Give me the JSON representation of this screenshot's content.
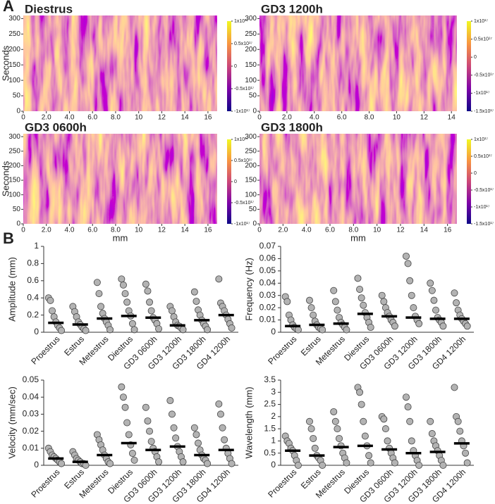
{
  "panel_labels": [
    "A",
    "B"
  ],
  "chart_data": [
    {
      "type": "heatmap",
      "title": "Diestrus",
      "ylabel": "Seconds",
      "xlim": [
        0,
        16.8
      ],
      "ylim": [
        0,
        310
      ],
      "xticks": [
        0,
        {
          "value": 2,
          "label": "2.0"
        },
        {
          "value": 4,
          "label": "4.0"
        },
        {
          "value": 6,
          "label": "6.0"
        },
        {
          "value": 8,
          "label": "8.0"
        },
        10,
        12,
        14,
        16
      ],
      "yticks": [
        0,
        50,
        100,
        150,
        200,
        250,
        300
      ],
      "clim": [
        -1e+17,
        1e+17
      ],
      "colorbar_ticks": [
        {
          "value": 1e+17,
          "label": "1x10¹⁷"
        },
        {
          "value": 5e+16,
          "label": "0.5x10¹⁷"
        },
        0,
        {
          "value": -5e+16,
          "label": "-0.5x10¹⁷"
        },
        {
          "value": -1e+17,
          "label": "-1x10¹⁷"
        }
      ]
    },
    {
      "type": "heatmap",
      "title": "GD3 1200h",
      "xlim": [
        0,
        14.4
      ],
      "ylim": [
        0,
        310
      ],
      "xticks": [
        0,
        {
          "value": 2,
          "label": "2.0"
        },
        {
          "value": 4,
          "label": "4.0"
        },
        {
          "value": 6,
          "label": "6.0"
        },
        {
          "value": 8,
          "label": "8.0"
        },
        10,
        12,
        14
      ],
      "yticks": [
        0,
        50,
        100,
        150,
        200,
        250,
        300
      ],
      "clim": [
        -1.5e+17,
        1e+17
      ],
      "colorbar_ticks": [
        {
          "value": 1e+17,
          "label": "1x10¹⁷"
        },
        {
          "value": 5e+16,
          "label": "0.5x10¹⁷"
        },
        0,
        {
          "value": -5e+16,
          "label": "-0.5x10¹⁷"
        },
        {
          "value": -1e+17,
          "label": "-1x10¹⁷"
        },
        {
          "value": -1.5e+17,
          "label": "-1.5x10¹⁷"
        }
      ]
    },
    {
      "type": "heatmap",
      "title": "GD3 0600h",
      "ylabel": "Seconds",
      "xlabel": "mm",
      "xlim": [
        0,
        16.8
      ],
      "ylim": [
        0,
        310
      ],
      "xticks": [
        0,
        {
          "value": 2,
          "label": "2.0"
        },
        {
          "value": 4,
          "label": "4.0"
        },
        {
          "value": 6,
          "label": "6.0"
        },
        {
          "value": 8,
          "label": "8.0"
        },
        10,
        12,
        14,
        16
      ],
      "yticks": [
        0,
        50,
        100,
        150,
        200,
        250,
        300
      ],
      "clim": [
        -1e+17,
        1e+17
      ],
      "colorbar_ticks": [
        {
          "value": 1e+17,
          "label": "1x10¹⁷"
        },
        {
          "value": 5e+16,
          "label": "0.5x10¹⁷"
        },
        0,
        {
          "value": -5e+16,
          "label": "-0.5x10¹⁷"
        },
        {
          "value": -1e+17,
          "label": "-1x10¹⁷"
        }
      ]
    },
    {
      "type": "heatmap",
      "title": "GD3 1800h",
      "xlabel": "mm",
      "xlim": [
        0,
        16.8
      ],
      "ylim": [
        0,
        310
      ],
      "xticks": [
        0,
        {
          "value": 2,
          "label": "2.0"
        },
        {
          "value": 4,
          "label": "4.0"
        },
        {
          "value": 6,
          "label": "6.0"
        },
        {
          "value": 8,
          "label": "8.0"
        },
        10,
        12,
        14,
        16
      ],
      "yticks": [
        0,
        50,
        100,
        150,
        200,
        250,
        300
      ],
      "clim": [
        -1.5e+17,
        1e+17
      ],
      "colorbar_ticks": [
        {
          "value": 1e+17,
          "label": "1x10¹⁷"
        },
        {
          "value": 5e+16,
          "label": "0.5x10¹⁷"
        },
        0,
        {
          "value": -5e+16,
          "label": "-0.5x10¹⁷"
        },
        {
          "value": -1e+17,
          "label": "-1x10¹⁷"
        },
        {
          "value": -1.5e+17,
          "label": "-1.5x10¹⁷"
        }
      ]
    },
    {
      "type": "dotplot",
      "ylabel": "Amplitude (mm)",
      "ylim": [
        0,
        1
      ],
      "yticks": [
        0,
        0.2,
        0.4,
        0.6,
        0.8,
        1
      ],
      "color": "#b3b3b3",
      "categories": [
        "Proestrus",
        "Estrus",
        "Metestrus",
        "Diestrus",
        "GD3 0600h",
        "GD3 1200h",
        "GD3 1800h",
        "GD4 1200h"
      ],
      "values": [
        [
          0.4,
          0.37,
          0.25,
          0.18,
          0.12,
          0.08,
          0.05,
          0.02
        ],
        [
          0.3,
          0.24,
          0.18,
          0.12,
          0.09,
          0.06,
          0.04,
          0.02
        ],
        [
          0.58,
          0.45,
          0.3,
          0.22,
          0.16,
          0.12,
          0.08,
          0.03
        ],
        [
          0.62,
          0.55,
          0.45,
          0.35,
          0.25,
          0.19,
          0.1,
          0.03
        ],
        [
          0.56,
          0.48,
          0.35,
          0.25,
          0.17,
          0.14,
          0.1,
          0.04
        ],
        [
          0.3,
          0.25,
          0.18,
          0.12,
          0.08,
          0.07,
          0.05,
          0.03
        ],
        [
          0.47,
          0.36,
          0.26,
          0.2,
          0.14,
          0.1,
          0.07,
          0.03
        ],
        [
          0.62,
          0.34,
          0.3,
          0.25,
          0.2,
          0.15,
          0.1,
          0.05
        ]
      ],
      "medians": [
        0.11,
        0.09,
        0.16,
        0.19,
        0.17,
        0.08,
        0.14,
        0.2
      ]
    },
    {
      "type": "dotplot",
      "ylabel": "Frequency (Hz)",
      "ylim": [
        0,
        0.07
      ],
      "yticks": [
        0,
        0.01,
        0.02,
        0.03,
        0.04,
        0.05,
        0.06,
        0.07
      ],
      "color": "#b3b3b3",
      "categories": [
        "Proestrus",
        "Estrus",
        "Metestrus",
        "Diestrus",
        "GD3 0600h",
        "GD3 1200h",
        "GD3 1800h",
        "GD4 1200h"
      ],
      "values": [
        [
          0.029,
          0.025,
          0.014,
          0.01,
          0.006,
          0.004,
          0.003,
          0.002
        ],
        [
          0.026,
          0.02,
          0.014,
          0.009,
          0.006,
          0.004,
          0.003,
          0.002
        ],
        [
          0.034,
          0.025,
          0.018,
          0.012,
          0.008,
          0.006,
          0.004,
          0.002
        ],
        [
          0.044,
          0.035,
          0.028,
          0.022,
          0.016,
          0.012,
          0.008,
          0.004
        ],
        [
          0.03,
          0.025,
          0.02,
          0.016,
          0.013,
          0.01,
          0.008,
          0.005
        ],
        [
          0.062,
          0.056,
          0.042,
          0.03,
          0.02,
          0.013,
          0.01,
          0.007
        ],
        [
          0.04,
          0.034,
          0.026,
          0.018,
          0.012,
          0.01,
          0.008,
          0.005
        ],
        [
          0.032,
          0.024,
          0.018,
          0.014,
          0.011,
          0.009,
          0.007,
          0.005
        ]
      ],
      "medians": [
        0.005,
        0.006,
        0.007,
        0.015,
        0.013,
        0.012,
        0.011,
        0.011
      ]
    },
    {
      "type": "dotplot",
      "ylabel": "Velocity (mm/sec)",
      "ylim": [
        0,
        0.05
      ],
      "yticks": [
        0,
        0.01,
        0.02,
        0.03,
        0.04,
        0.05
      ],
      "color": "#b3b3b3",
      "categories": [
        "Proestrus",
        "Estrus",
        "Metestrus",
        "Diestrus",
        "GD3 0600h",
        "GD3 1200h",
        "GD3 1800h",
        "GD4 1200h"
      ],
      "values": [
        [
          0.01,
          0.008,
          0.006,
          0.005,
          0.004,
          0.003,
          0.002,
          0.001
        ],
        [
          0.008,
          0.006,
          0.004,
          0.003,
          0.002,
          0.001,
          0.001,
          0
        ],
        [
          0.018,
          0.015,
          0.012,
          0.009,
          0.006,
          0.004,
          0.002,
          0.001
        ],
        [
          0.046,
          0.04,
          0.034,
          0.025,
          0.018,
          0.012,
          0.007,
          0.003
        ],
        [
          0.034,
          0.026,
          0.02,
          0.014,
          0.01,
          0.008,
          0.005,
          0.002
        ],
        [
          0.038,
          0.03,
          0.022,
          0.016,
          0.011,
          0.008,
          0.005,
          0.002
        ],
        [
          0.022,
          0.018,
          0.013,
          0.009,
          0.006,
          0.004,
          0.003,
          0.001
        ],
        [
          0.036,
          0.03,
          0.022,
          0.015,
          0.01,
          0.007,
          0.004,
          0.001
        ]
      ],
      "medians": [
        0.004,
        0.002,
        0.006,
        0.013,
        0.009,
        0.011,
        0.006,
        0.009
      ]
    },
    {
      "type": "dotplot",
      "ylabel": "Wavelength (mm)",
      "ylim": [
        0,
        3.5
      ],
      "yticks": [
        0,
        0.5,
        1,
        1.5,
        2,
        2.5,
        3,
        3.5
      ],
      "color": "#b3b3b3",
      "categories": [
        "Proestrus",
        "Estrus",
        "Metestrus",
        "Diestrus",
        "GD3 0600h",
        "GD3 1200h",
        "GD3 1800h",
        "GD4 1200h"
      ],
      "values": [
        [
          1.2,
          1.0,
          0.9,
          0.7,
          0.6,
          0.4,
          0.2,
          0
        ],
        [
          1.8,
          1.5,
          1.1,
          0.7,
          0.4,
          0.3,
          0.2,
          0
        ],
        [
          2.2,
          1.8,
          1.5,
          1.1,
          0.8,
          0.5,
          0.3,
          0.1
        ],
        [
          3.2,
          3.0,
          2.5,
          1.8,
          1.2,
          0.8,
          0.4,
          0.1
        ],
        [
          2.0,
          1.9,
          1.5,
          1.0,
          0.7,
          0.5,
          0.3,
          0.1
        ],
        [
          2.8,
          2.4,
          1.8,
          1.0,
          0.6,
          0.4,
          0.2,
          0
        ],
        [
          1.8,
          1.3,
          1.0,
          0.8,
          0.6,
          0.4,
          0.2,
          0
        ],
        [
          3.2,
          2.0,
          1.8,
          1.4,
          1.0,
          0.8,
          0.5,
          0.1
        ]
      ],
      "medians": [
        0.6,
        0.4,
        0.75,
        0.8,
        0.65,
        0.5,
        0.55,
        0.9
      ]
    }
  ]
}
